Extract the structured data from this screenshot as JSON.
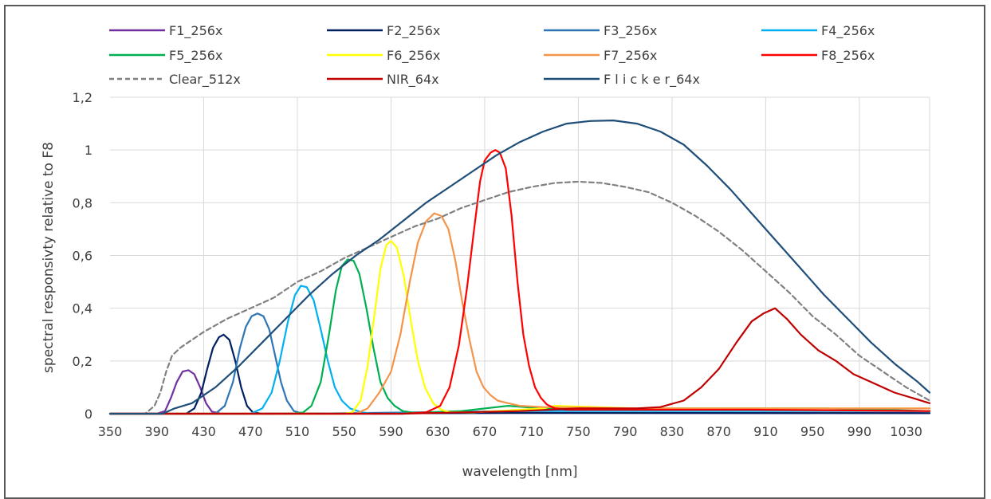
{
  "chart_data": {
    "type": "line",
    "xlabel": "wavelength [nm]",
    "ylabel": "spectral responsivty relative to F8",
    "xlim": [
      350,
      1050
    ],
    "ylim": [
      0,
      1.2
    ],
    "x_ticks": [
      "350",
      "390",
      "430",
      "470",
      "510",
      "550",
      "590",
      "630",
      "670",
      "710",
      "750",
      "790",
      "830",
      "870",
      "910",
      "950",
      "990",
      "1030"
    ],
    "y_ticks": [
      "0",
      "0,2",
      "0,4",
      "0,6",
      "0,8",
      "1",
      "1,2"
    ],
    "grid": true,
    "legend_position": "top",
    "series": [
      {
        "name": "F1_256x",
        "color": "#7030A0",
        "dash": "",
        "points": [
          [
            350,
            0
          ],
          [
            390,
            0
          ],
          [
            397,
            0.01
          ],
          [
            402,
            0.06
          ],
          [
            407,
            0.12
          ],
          [
            412,
            0.16
          ],
          [
            417,
            0.165
          ],
          [
            422,
            0.15
          ],
          [
            427,
            0.1
          ],
          [
            432,
            0.04
          ],
          [
            437,
            0.008
          ],
          [
            445,
            0
          ],
          [
            700,
            0.003
          ],
          [
            1050,
            0.002
          ]
        ]
      },
      {
        "name": "F2_256x",
        "color": "#002060",
        "dash": "",
        "points": [
          [
            350,
            0
          ],
          [
            415,
            0
          ],
          [
            422,
            0.02
          ],
          [
            428,
            0.08
          ],
          [
            433,
            0.17
          ],
          [
            438,
            0.25
          ],
          [
            443,
            0.29
          ],
          [
            447,
            0.3
          ],
          [
            452,
            0.28
          ],
          [
            457,
            0.2
          ],
          [
            462,
            0.1
          ],
          [
            467,
            0.03
          ],
          [
            472,
            0.005
          ],
          [
            480,
            0
          ],
          [
            700,
            0.003
          ],
          [
            1050,
            0.002
          ]
        ]
      },
      {
        "name": "F3_256x",
        "color": "#2E75B6",
        "dash": "",
        "points": [
          [
            350,
            0
          ],
          [
            440,
            0
          ],
          [
            448,
            0.03
          ],
          [
            455,
            0.12
          ],
          [
            461,
            0.25
          ],
          [
            466,
            0.33
          ],
          [
            471,
            0.37
          ],
          [
            476,
            0.38
          ],
          [
            481,
            0.37
          ],
          [
            486,
            0.32
          ],
          [
            491,
            0.22
          ],
          [
            496,
            0.12
          ],
          [
            501,
            0.05
          ],
          [
            507,
            0.01
          ],
          [
            515,
            0
          ],
          [
            700,
            0.01
          ],
          [
            800,
            0.015
          ],
          [
            1050,
            0.01
          ]
        ]
      },
      {
        "name": "F4_256x",
        "color": "#00B0F0",
        "dash": "",
        "points": [
          [
            350,
            0
          ],
          [
            470,
            0
          ],
          [
            480,
            0.02
          ],
          [
            488,
            0.08
          ],
          [
            495,
            0.2
          ],
          [
            502,
            0.35
          ],
          [
            508,
            0.45
          ],
          [
            513,
            0.485
          ],
          [
            518,
            0.48
          ],
          [
            524,
            0.43
          ],
          [
            530,
            0.32
          ],
          [
            536,
            0.2
          ],
          [
            542,
            0.1
          ],
          [
            548,
            0.05
          ],
          [
            555,
            0.02
          ],
          [
            565,
            0.005
          ],
          [
            575,
            0
          ],
          [
            700,
            0.01
          ],
          [
            1050,
            0.01
          ]
        ]
      },
      {
        "name": "F5_256x",
        "color": "#00B050",
        "dash": "",
        "points": [
          [
            350,
            0
          ],
          [
            505,
            0
          ],
          [
            515,
            0.005
          ],
          [
            522,
            0.03
          ],
          [
            530,
            0.12
          ],
          [
            537,
            0.3
          ],
          [
            543,
            0.47
          ],
          [
            548,
            0.56
          ],
          [
            553,
            0.585
          ],
          [
            558,
            0.58
          ],
          [
            563,
            0.53
          ],
          [
            569,
            0.4
          ],
          [
            575,
            0.25
          ],
          [
            581,
            0.12
          ],
          [
            587,
            0.06
          ],
          [
            593,
            0.03
          ],
          [
            600,
            0.01
          ],
          [
            610,
            0.003
          ],
          [
            650,
            0.01
          ],
          [
            690,
            0.03
          ],
          [
            720,
            0.02
          ],
          [
            800,
            0.02
          ],
          [
            900,
            0.02
          ],
          [
            960,
            0.02
          ],
          [
            1050,
            0.01
          ]
        ]
      },
      {
        "name": "F6_256x",
        "color": "#FFFF00",
        "dash": "",
        "points": [
          [
            350,
            0
          ],
          [
            550,
            0
          ],
          [
            557,
            0.005
          ],
          [
            564,
            0.05
          ],
          [
            570,
            0.18
          ],
          [
            576,
            0.38
          ],
          [
            581,
            0.55
          ],
          [
            586,
            0.64
          ],
          [
            590,
            0.655
          ],
          [
            595,
            0.63
          ],
          [
            601,
            0.52
          ],
          [
            607,
            0.35
          ],
          [
            613,
            0.2
          ],
          [
            619,
            0.1
          ],
          [
            626,
            0.04
          ],
          [
            633,
            0.015
          ],
          [
            640,
            0.005
          ],
          [
            660,
            0.005
          ],
          [
            720,
            0.02
          ],
          [
            730,
            0.03
          ],
          [
            800,
            0.02
          ],
          [
            900,
            0.02
          ],
          [
            1050,
            0.02
          ]
        ]
      },
      {
        "name": "F7_256x",
        "color": "#F4944A",
        "dash": "",
        "points": [
          [
            350,
            0
          ],
          [
            560,
            0
          ],
          [
            570,
            0.02
          ],
          [
            580,
            0.08
          ],
          [
            590,
            0.16
          ],
          [
            598,
            0.3
          ],
          [
            606,
            0.5
          ],
          [
            613,
            0.65
          ],
          [
            620,
            0.73
          ],
          [
            627,
            0.76
          ],
          [
            633,
            0.75
          ],
          [
            639,
            0.7
          ],
          [
            645,
            0.58
          ],
          [
            651,
            0.42
          ],
          [
            657,
            0.28
          ],
          [
            663,
            0.16
          ],
          [
            669,
            0.1
          ],
          [
            675,
            0.07
          ],
          [
            681,
            0.05
          ],
          [
            690,
            0.04
          ],
          [
            700,
            0.03
          ],
          [
            720,
            0.025
          ],
          [
            800,
            0.02
          ],
          [
            900,
            0.02
          ],
          [
            1050,
            0.02
          ]
        ]
      },
      {
        "name": "F8_256x",
        "color": "#FF0000",
        "dash": "",
        "points": [
          [
            350,
            0
          ],
          [
            600,
            0
          ],
          [
            620,
            0.005
          ],
          [
            632,
            0.03
          ],
          [
            640,
            0.1
          ],
          [
            648,
            0.26
          ],
          [
            655,
            0.48
          ],
          [
            661,
            0.7
          ],
          [
            666,
            0.88
          ],
          [
            670,
            0.96
          ],
          [
            675,
            0.99
          ],
          [
            679,
            1.0
          ],
          [
            683,
            0.99
          ],
          [
            688,
            0.93
          ],
          [
            693,
            0.75
          ],
          [
            698,
            0.5
          ],
          [
            703,
            0.3
          ],
          [
            708,
            0.18
          ],
          [
            713,
            0.1
          ],
          [
            718,
            0.06
          ],
          [
            723,
            0.035
          ],
          [
            730,
            0.02
          ],
          [
            740,
            0.015
          ],
          [
            800,
            0.015
          ],
          [
            900,
            0.015
          ],
          [
            1050,
            0.01
          ]
        ]
      },
      {
        "name": "Clear_512x",
        "color": "#808080",
        "dash": "6,4",
        "points": [
          [
            350,
            0
          ],
          [
            380,
            0
          ],
          [
            388,
            0.03
          ],
          [
            393,
            0.08
          ],
          [
            398,
            0.16
          ],
          [
            403,
            0.22
          ],
          [
            410,
            0.25
          ],
          [
            430,
            0.31
          ],
          [
            450,
            0.36
          ],
          [
            470,
            0.4
          ],
          [
            490,
            0.44
          ],
          [
            510,
            0.5
          ],
          [
            530,
            0.54
          ],
          [
            550,
            0.59
          ],
          [
            570,
            0.63
          ],
          [
            590,
            0.67
          ],
          [
            610,
            0.71
          ],
          [
            630,
            0.74
          ],
          [
            650,
            0.78
          ],
          [
            670,
            0.81
          ],
          [
            690,
            0.84
          ],
          [
            710,
            0.86
          ],
          [
            730,
            0.875
          ],
          [
            750,
            0.88
          ],
          [
            770,
            0.875
          ],
          [
            790,
            0.86
          ],
          [
            810,
            0.84
          ],
          [
            830,
            0.8
          ],
          [
            850,
            0.75
          ],
          [
            870,
            0.69
          ],
          [
            890,
            0.62
          ],
          [
            910,
            0.54
          ],
          [
            930,
            0.46
          ],
          [
            950,
            0.37
          ],
          [
            970,
            0.3
          ],
          [
            990,
            0.22
          ],
          [
            1010,
            0.16
          ],
          [
            1030,
            0.1
          ],
          [
            1050,
            0.05
          ]
        ]
      },
      {
        "name": "NIR_64x",
        "color": "#C00000",
        "dash": "",
        "points": [
          [
            350,
            0
          ],
          [
            600,
            0
          ],
          [
            700,
            0.01
          ],
          [
            750,
            0.02
          ],
          [
            800,
            0.02
          ],
          [
            820,
            0.025
          ],
          [
            840,
            0.05
          ],
          [
            855,
            0.1
          ],
          [
            870,
            0.17
          ],
          [
            885,
            0.27
          ],
          [
            898,
            0.35
          ],
          [
            908,
            0.38
          ],
          [
            918,
            0.4
          ],
          [
            928,
            0.36
          ],
          [
            940,
            0.3
          ],
          [
            955,
            0.24
          ],
          [
            970,
            0.2
          ],
          [
            985,
            0.15
          ],
          [
            1000,
            0.12
          ],
          [
            1020,
            0.08
          ],
          [
            1035,
            0.06
          ],
          [
            1050,
            0.04
          ]
        ]
      },
      {
        "name": "F l i c k e r_64x",
        "color": "#1F4E79",
        "dash": "",
        "points": [
          [
            350,
            0
          ],
          [
            395,
            0
          ],
          [
            405,
            0.02
          ],
          [
            420,
            0.04
          ],
          [
            440,
            0.1
          ],
          [
            460,
            0.18
          ],
          [
            480,
            0.27
          ],
          [
            500,
            0.36
          ],
          [
            520,
            0.45
          ],
          [
            540,
            0.53
          ],
          [
            560,
            0.6
          ],
          [
            580,
            0.66
          ],
          [
            600,
            0.73
          ],
          [
            620,
            0.8
          ],
          [
            640,
            0.86
          ],
          [
            660,
            0.92
          ],
          [
            680,
            0.98
          ],
          [
            700,
            1.03
          ],
          [
            720,
            1.07
          ],
          [
            740,
            1.1
          ],
          [
            760,
            1.11
          ],
          [
            780,
            1.112
          ],
          [
            800,
            1.1
          ],
          [
            820,
            1.07
          ],
          [
            840,
            1.02
          ],
          [
            860,
            0.94
          ],
          [
            880,
            0.85
          ],
          [
            900,
            0.75
          ],
          [
            920,
            0.65
          ],
          [
            940,
            0.55
          ],
          [
            960,
            0.45
          ],
          [
            980,
            0.36
          ],
          [
            1000,
            0.27
          ],
          [
            1020,
            0.19
          ],
          [
            1040,
            0.12
          ],
          [
            1050,
            0.08
          ]
        ]
      }
    ]
  }
}
